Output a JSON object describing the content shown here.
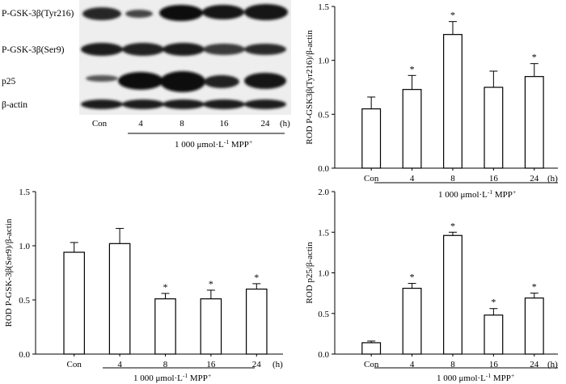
{
  "blot": {
    "rows": [
      "P-GSK-3β(Tyr216)",
      "P-GSK-3β(Ser9)",
      "p25",
      "β-actin"
    ],
    "lane_labels": [
      "Con",
      "4",
      "8",
      "16",
      "24",
      "(h)"
    ],
    "treatment": {
      "base": "1 000 μmol·L",
      "exp": "-1",
      "tail": " MPP",
      "sup": "+"
    }
  },
  "chart_data": [
    {
      "id": "tyr216",
      "type": "bar",
      "ylabel": "ROD P-GSK3β(Tyr216)/β-actin",
      "categories": [
        "Con",
        "4",
        "8",
        "16",
        "24"
      ],
      "unit_label": "(h)",
      "values": [
        0.55,
        0.73,
        1.24,
        0.75,
        0.85
      ],
      "errors": [
        0.11,
        0.13,
        0.12,
        0.15,
        0.12
      ],
      "significant": [
        "",
        "*",
        "*",
        "",
        "*"
      ],
      "ylim": [
        0,
        1.5
      ],
      "yticks": [
        "0.0",
        "0.5",
        "1.0",
        "1.5"
      ],
      "treatment_label": {
        "base": "1 000 μmol·L",
        "exp": "-1",
        "tail": " MPP",
        "sup": "+"
      }
    },
    {
      "id": "ser9",
      "type": "bar",
      "ylabel": "ROD P-GSK-3β(Ser9)/β-actin",
      "categories": [
        "Con",
        "4",
        "8",
        "16",
        "24"
      ],
      "unit_label": "(h)",
      "values": [
        0.94,
        1.02,
        0.51,
        0.51,
        0.6
      ],
      "errors": [
        0.09,
        0.14,
        0.05,
        0.08,
        0.05
      ],
      "significant": [
        "",
        "",
        "*",
        "*",
        "*"
      ],
      "ylim": [
        0,
        1.5
      ],
      "yticks": [
        "0.0",
        "0.5",
        "1.0",
        "1.5"
      ],
      "treatment_label": {
        "base": "1 000 μmol·L",
        "exp": "-1",
        "tail": " MPP",
        "sup": "+"
      }
    },
    {
      "id": "p25",
      "type": "bar",
      "ylabel": "ROD p25/β-actin",
      "categories": [
        "Con",
        "4",
        "8",
        "16",
        "24"
      ],
      "unit_label": "(h)",
      "values": [
        0.14,
        0.81,
        1.46,
        0.48,
        0.69
      ],
      "errors": [
        0.02,
        0.06,
        0.04,
        0.08,
        0.06
      ],
      "significant": [
        "",
        "*",
        "*",
        "*",
        "*"
      ],
      "ylim": [
        0,
        2.0
      ],
      "yticks": [
        "0.0",
        "0.5",
        "1.0",
        "1.5",
        "2.0"
      ],
      "treatment_label": {
        "base": "1 000 μmol·L",
        "exp": "-1",
        "tail": " MPP",
        "sup": "+"
      }
    }
  ]
}
